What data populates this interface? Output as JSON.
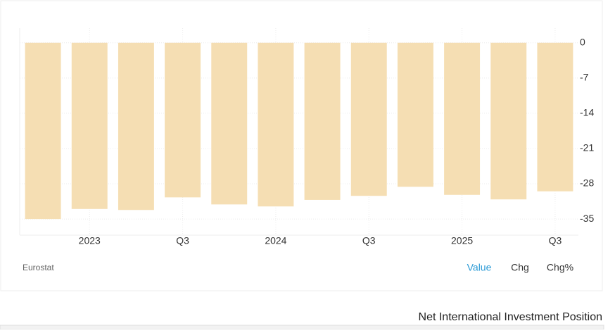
{
  "chart_data": {
    "type": "bar",
    "categories": [
      null,
      "2023",
      null,
      "Q3",
      null,
      "2024",
      null,
      "Q3",
      null,
      "2025",
      null,
      "Q3"
    ],
    "values": [
      -35.0,
      -33.0,
      -33.2,
      -30.7,
      -32.1,
      -32.5,
      -31.2,
      -30.4,
      -28.6,
      -30.2,
      -31.1,
      -29.5
    ],
    "color": "#f5deb3",
    "ylim": [
      -38.2,
      2.9
    ],
    "yticks": [
      0,
      -7,
      -14,
      -21,
      -28,
      -35
    ],
    "grid": true,
    "source": "Eurostat",
    "buttons": [
      "Value",
      "Chg",
      "Chg%"
    ]
  },
  "footer": {
    "title": "Net International Investment Position"
  }
}
